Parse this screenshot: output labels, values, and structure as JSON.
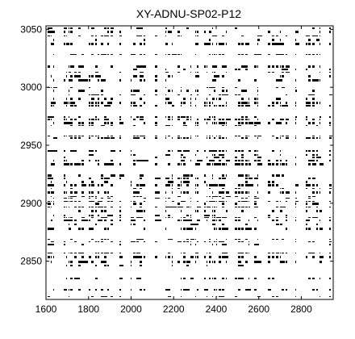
{
  "chart_data": {
    "type": "heatmap",
    "title": "XY-ADNU-SP02-P12",
    "xlabel": "",
    "ylabel": "",
    "xlim": [
      1600,
      2950
    ],
    "ylim": [
      2817,
      3053
    ],
    "xticks": [
      1600,
      1800,
      2000,
      2200,
      2400,
      2600,
      2800
    ],
    "yticks": [
      2850,
      2900,
      2950,
      3000,
      3050
    ],
    "xtick_labels": [
      "1600",
      "1800",
      "2000",
      "2200",
      "2400",
      "2600",
      "2800"
    ],
    "ytick_labels": [
      "2850",
      "2900",
      "2950",
      "3000",
      "3050"
    ],
    "grid": false,
    "legend": "none",
    "colors": {
      "mark": "#000000",
      "background": "#ffffff",
      "axes": "#000000"
    }
  }
}
